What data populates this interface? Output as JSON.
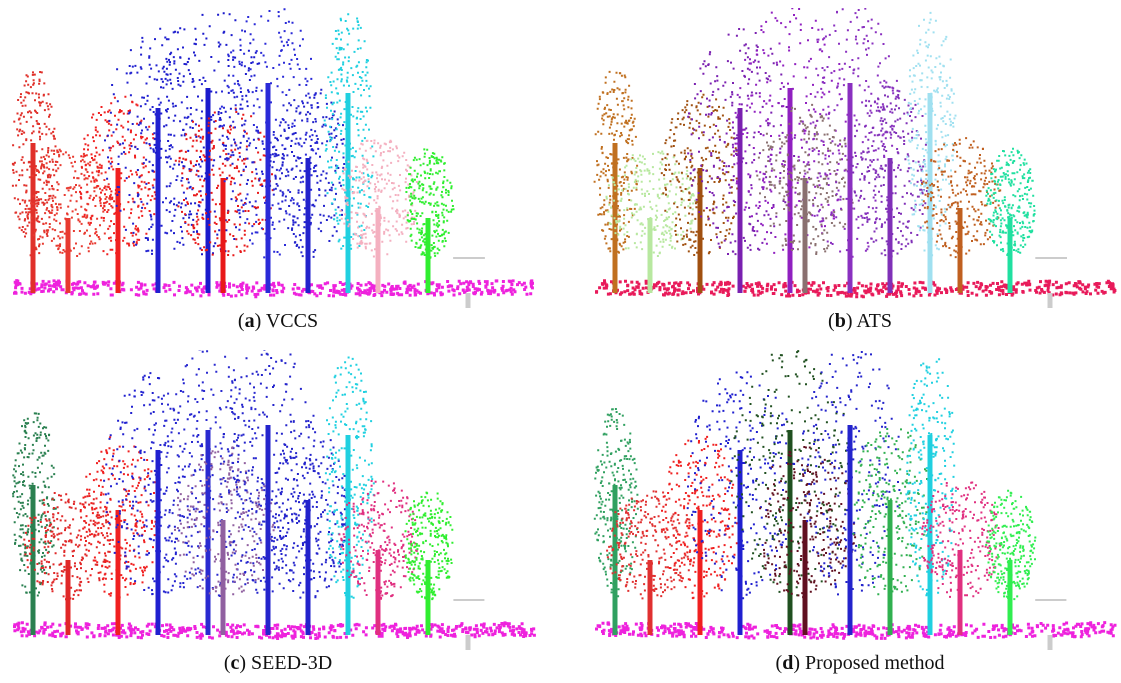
{
  "figure": {
    "panels": [
      {
        "caption_parts": [
          "(",
          "a",
          ") VCCS"
        ]
      },
      {
        "caption_parts": [
          "(",
          "b",
          ") ATS"
        ]
      },
      {
        "caption_parts": [
          "(",
          "c",
          ") SEED-3D"
        ]
      },
      {
        "caption_parts": [
          "(",
          "d",
          ") Proposed method"
        ]
      }
    ]
  }
}
